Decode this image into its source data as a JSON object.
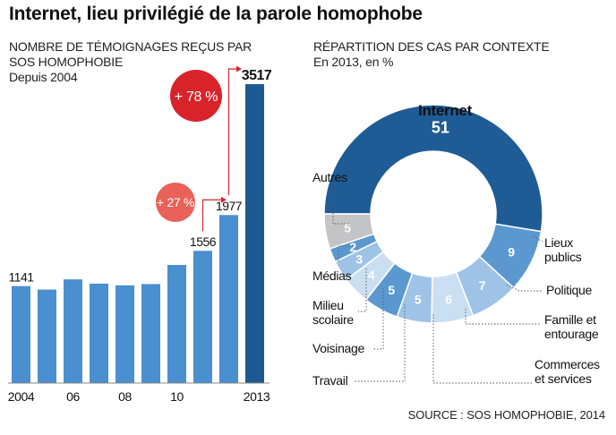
{
  "title": "Internet, lieu privilégié de la parole homophobe",
  "source": "SOURCE : SOS HOMOPHOBIE, 2014",
  "colors": {
    "bar": "#4a8fcf",
    "bar_highlight": "#1d5a93",
    "red_big": "#d9232b",
    "red_small": "#e96159",
    "donut_internet": "#1f5c96",
    "donut_mid": "#5b98d0",
    "donut_light": "#9fc3e6",
    "donut_pale": "#cadff2",
    "donut_gray": "#c3c4c6"
  },
  "chart_data": [
    {
      "type": "bar",
      "title": "NOMBRE DE TÉMOIGNAGES REÇUS PAR SOS HOMOPHOBIE",
      "subtitle": "Depuis 2004",
      "categories": [
        "2004",
        "2005",
        "2006",
        "2007",
        "2008",
        "2009",
        "2010",
        "2011",
        "2012",
        "2013"
      ],
      "values": [
        1141,
        1100,
        1220,
        1170,
        1150,
        1165,
        1390,
        1556,
        1977,
        3517
      ],
      "value_labels": {
        "0": "1141",
        "7": "1556",
        "8": "1977",
        "9": "3517"
      },
      "tick_labels": {
        "0": "2004",
        "2": "06",
        "4": "08",
        "6": "10",
        "9": "2013"
      },
      "ylim": [
        0,
        3600
      ],
      "annotations": [
        {
          "label": "+ 27 %",
          "from_index": 7,
          "to_index": 8
        },
        {
          "label": "+ 78 %",
          "from_index": 8,
          "to_index": 9
        }
      ]
    },
    {
      "type": "pie",
      "title": "RÉPARTITION DES CAS PAR CONTEXTE",
      "subtitle": "En 2013, en %",
      "donut": true,
      "slices": [
        {
          "label": "Internet",
          "value": 51
        },
        {
          "label": "Lieux publics",
          "value": 9
        },
        {
          "label": "Politique",
          "value": 7
        },
        {
          "label": "Famille et entourage",
          "value": 6
        },
        {
          "label": "Commerces et services",
          "value": 5
        },
        {
          "label": "Travail",
          "value": 5
        },
        {
          "label": "Voisinage",
          "value": 4
        },
        {
          "label": "Milieu scolaire",
          "value": 3
        },
        {
          "label": "Médias",
          "value": 2
        },
        {
          "label": "Autres",
          "value": 5
        }
      ]
    }
  ]
}
